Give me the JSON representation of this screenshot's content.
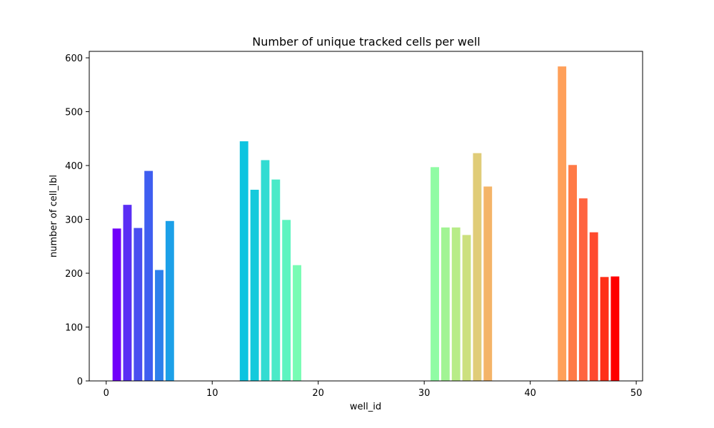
{
  "chart_data": {
    "type": "bar",
    "title": "Number of unique tracked cells per well",
    "xlabel": "well_id",
    "ylabel": "number of cell_lbl",
    "xlim": [
      -1.6,
      50.6
    ],
    "ylim": [
      0,
      612
    ],
    "xticks": [
      0,
      10,
      20,
      30,
      40,
      50
    ],
    "yticks": [
      0,
      100,
      200,
      300,
      400,
      500,
      600
    ],
    "grid": false,
    "legend": "none",
    "bar_width": 0.8,
    "x": [
      1,
      2,
      3,
      4,
      5,
      6,
      13,
      14,
      15,
      16,
      17,
      18,
      31,
      32,
      33,
      34,
      35,
      36,
      43,
      44,
      45,
      46,
      47,
      48
    ],
    "values": [
      283,
      327,
      284,
      390,
      206,
      297,
      445,
      355,
      410,
      374,
      299,
      215,
      397,
      285,
      285,
      271,
      423,
      361,
      584,
      401,
      339,
      276,
      193,
      194
    ],
    "colors": [
      "#7000fa",
      "#5a2ef4",
      "#4a4ef0",
      "#3f5ef0",
      "#2d80ec",
      "#1ca0e8",
      "#0cc4e0",
      "#14cadc",
      "#32dcd2",
      "#4aeac8",
      "#5ef4c0",
      "#78fcb4",
      "#90fca4",
      "#a2f494",
      "#b8ec88",
      "#cce07e",
      "#e0cc78",
      "#f4b468",
      "#ffa05a",
      "#ff7a46",
      "#ff6440",
      "#ff4a2e",
      "#ff3018",
      "#ff0000"
    ]
  }
}
